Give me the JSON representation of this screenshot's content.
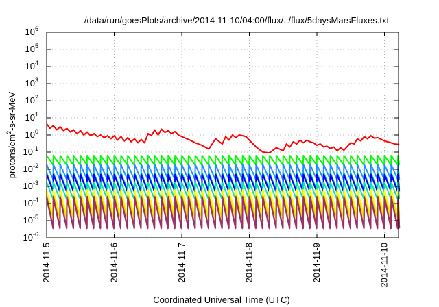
{
  "chart_data": {
    "type": "line",
    "title": "/data/run/goesPlots/archive/2014-11-10/04:00/flux/../flux/5daysMarsFluxes.txt",
    "xlabel": "Coordinated Universal Time (UTC)",
    "ylabel": {
      "prefix": "protons/cm",
      "sup": "2",
      "suffix": "-s-sr-MeV"
    },
    "yscale": "log",
    "ylim_exp": [
      -6,
      6
    ],
    "y_tick_exponents": [
      -6,
      -5,
      -4,
      -3,
      -2,
      -1,
      0,
      1,
      2,
      3,
      4,
      5,
      6
    ],
    "xlim_days": [
      0,
      5.22
    ],
    "x_ticks": [
      {
        "label": "2014-11-5",
        "day": 0
      },
      {
        "label": "2014-11-6",
        "day": 1
      },
      {
        "label": "2014-11-7",
        "day": 2
      },
      {
        "label": "2014-11-8",
        "day": 3
      },
      {
        "label": "2014-11-9",
        "day": 4
      },
      {
        "label": "2014-11-10",
        "day": 5
      }
    ],
    "grid": true,
    "legend": "none",
    "sawtooth_period_days": 0.1,
    "series": [
      {
        "color": "#ff0000",
        "sawtooth": false,
        "x": [
          0.0,
          0.05,
          0.1,
          0.15,
          0.2,
          0.25,
          0.3,
          0.35,
          0.4,
          0.45,
          0.5,
          0.55,
          0.6,
          0.65,
          0.7,
          0.75,
          0.8,
          0.85,
          0.9,
          0.95,
          1.0,
          1.05,
          1.1,
          1.15,
          1.2,
          1.25,
          1.3,
          1.35,
          1.4,
          1.45,
          1.5,
          1.55,
          1.6,
          1.65,
          1.7,
          1.75,
          1.8,
          1.85,
          1.9,
          1.95,
          2.0,
          2.1,
          2.2,
          2.3,
          2.4,
          2.5,
          2.6,
          2.65,
          2.7,
          2.75,
          2.8,
          2.85,
          2.9,
          2.95,
          3.0,
          3.1,
          3.2,
          3.3,
          3.4,
          3.5,
          3.55,
          3.6,
          3.65,
          3.7,
          3.75,
          3.8,
          3.85,
          3.9,
          3.95,
          4.0,
          4.05,
          4.1,
          4.15,
          4.2,
          4.25,
          4.3,
          4.35,
          4.4,
          4.5,
          4.55,
          4.6,
          4.65,
          4.7,
          4.75,
          4.8,
          4.85,
          4.9,
          5.0,
          5.1,
          5.15,
          5.22
        ],
        "y": [
          4.5,
          2.5,
          3.5,
          2.0,
          3.0,
          1.8,
          2.4,
          1.5,
          2.0,
          1.2,
          1.8,
          1.0,
          1.5,
          0.9,
          1.2,
          0.8,
          1.0,
          0.7,
          0.9,
          0.6,
          0.9,
          0.5,
          0.8,
          0.45,
          0.7,
          0.4,
          0.6,
          0.35,
          0.55,
          0.35,
          1.2,
          0.9,
          2.0,
          1.0,
          2.2,
          1.4,
          1.8,
          1.2,
          1.6,
          1.0,
          0.8,
          0.55,
          0.35,
          0.25,
          0.15,
          0.6,
          0.3,
          0.8,
          0.5,
          1.0,
          0.7,
          1.0,
          0.9,
          0.8,
          0.5,
          0.2,
          0.1,
          0.09,
          0.18,
          0.12,
          0.3,
          0.2,
          0.4,
          0.3,
          0.5,
          0.35,
          0.5,
          0.4,
          0.35,
          0.25,
          0.3,
          0.2,
          0.22,
          0.16,
          0.2,
          0.12,
          0.18,
          0.13,
          0.35,
          0.3,
          0.6,
          0.45,
          0.8,
          0.6,
          0.9,
          0.65,
          0.7,
          0.45,
          0.35,
          0.3,
          0.28
        ]
      },
      {
        "color": "#00ff00",
        "sawtooth": true,
        "peak_exp": -1.2,
        "trough_exp": -1.75
      },
      {
        "color": "#1e90ff",
        "sawtooth": true,
        "peak_exp": -1.72,
        "trough_exp": -2.6
      },
      {
        "color": "#00c8c8",
        "sawtooth": true,
        "peak_exp": -2.2,
        "trough_exp": -3.2
      },
      {
        "color": "#0000ff",
        "sawtooth": true,
        "peak_exp": -2.3,
        "trough_exp": -3.3
      },
      {
        "color": "#00e5a8",
        "sawtooth": true,
        "peak_exp": -2.75,
        "trough_exp": -3.75
      },
      {
        "color": "#ffd700",
        "sawtooth": true,
        "peak_exp": -3.25,
        "trough_exp": -4.7
      },
      {
        "color": "#ffff00",
        "sawtooth": true,
        "peak_exp": -3.2,
        "trough_exp": -4.65
      },
      {
        "color": "#f0e000",
        "sawtooth": true,
        "peak_exp": -3.5,
        "trough_exp": -4.9
      },
      {
        "color": "#b03060",
        "sawtooth": true,
        "peak_exp": -3.7,
        "trough_exp": -5.45
      },
      {
        "color": "#993366",
        "sawtooth": true,
        "peak_exp": -3.6,
        "trough_exp": -5.4
      }
    ]
  }
}
